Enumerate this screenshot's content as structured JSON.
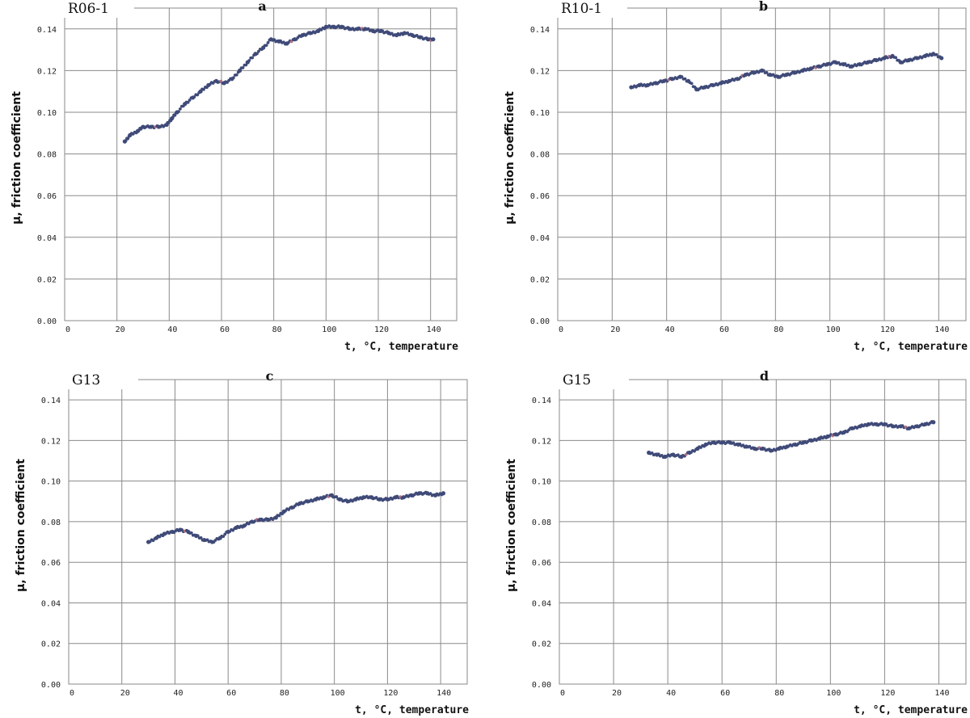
{
  "colors": {
    "points": "#3f4a78",
    "accent": "#b07080",
    "grid": "#8a8a8a"
  },
  "chart_data": [
    {
      "type": "scatter",
      "panel": "a",
      "sample": "R06-1",
      "xlabel": "t, °C, temperature",
      "ylabel": "μ, friction coefficient",
      "xlim": [
        0,
        150
      ],
      "ylim": [
        0,
        0.15
      ],
      "x_ticks": [
        "0",
        "20",
        "40",
        "60",
        "80",
        "100",
        "120",
        "140"
      ],
      "y_ticks": [
        "0.00",
        "0.02",
        "0.04",
        "0.06",
        "0.08",
        "0.10",
        "0.12",
        "0.14"
      ],
      "grid": true,
      "series": [
        {
          "x": [
            23,
            25,
            28,
            30,
            33,
            36,
            39,
            41,
            43,
            46,
            49,
            52,
            55,
            58,
            61,
            64,
            67,
            70,
            73,
            76,
            79,
            82,
            85,
            88,
            91,
            94,
            97,
            100,
            103,
            106,
            109,
            112,
            115,
            118,
            121,
            124,
            127,
            130,
            133,
            136,
            139,
            141
          ],
          "y": [
            0.086,
            0.089,
            0.091,
            0.093,
            0.093,
            0.093,
            0.094,
            0.097,
            0.1,
            0.104,
            0.107,
            0.11,
            0.113,
            0.115,
            0.114,
            0.116,
            0.12,
            0.124,
            0.128,
            0.131,
            0.135,
            0.134,
            0.133,
            0.135,
            0.137,
            0.138,
            0.139,
            0.141,
            0.141,
            0.141,
            0.14,
            0.14,
            0.14,
            0.139,
            0.139,
            0.138,
            0.137,
            0.138,
            0.137,
            0.136,
            0.135,
            0.135
          ]
        }
      ]
    },
    {
      "type": "scatter",
      "panel": "b",
      "sample": "R10-1",
      "xlabel": "t, °C, temperature",
      "ylabel": "μ, friction coefficient",
      "xlim": [
        0,
        150
      ],
      "ylim": [
        0,
        0.15
      ],
      "x_ticks": [
        "0",
        "20",
        "40",
        "60",
        "80",
        "100",
        "120",
        "140"
      ],
      "y_ticks": [
        "0.00",
        "0.02",
        "0.04",
        "0.06",
        "0.08",
        "0.10",
        "0.12",
        "0.14"
      ],
      "grid": true,
      "series": [
        {
          "x": [
            27,
            30,
            33,
            36,
            39,
            42,
            45,
            48,
            51,
            54,
            57,
            60,
            63,
            66,
            69,
            72,
            75,
            78,
            81,
            84,
            87,
            90,
            93,
            96,
            99,
            102,
            105,
            108,
            111,
            114,
            117,
            120,
            123,
            126,
            129,
            132,
            135,
            138,
            141
          ],
          "y": [
            0.112,
            0.113,
            0.113,
            0.114,
            0.115,
            0.116,
            0.117,
            0.115,
            0.111,
            0.112,
            0.113,
            0.114,
            0.115,
            0.116,
            0.118,
            0.119,
            0.12,
            0.118,
            0.117,
            0.118,
            0.119,
            0.12,
            0.121,
            0.122,
            0.123,
            0.124,
            0.123,
            0.122,
            0.123,
            0.124,
            0.125,
            0.126,
            0.127,
            0.124,
            0.125,
            0.126,
            0.127,
            0.128,
            0.126
          ]
        }
      ]
    },
    {
      "type": "scatter",
      "panel": "c",
      "sample": "G13",
      "xlabel": "t, °C, temperature",
      "ylabel": "μ, friction coefficient",
      "xlim": [
        0,
        150
      ],
      "ylim": [
        0,
        0.15
      ],
      "x_ticks": [
        "0",
        "20",
        "40",
        "60",
        "80",
        "100",
        "120",
        "140"
      ],
      "y_ticks": [
        "0.00",
        "0.02",
        "0.04",
        "0.06",
        "0.08",
        "0.10",
        "0.12",
        "0.14"
      ],
      "grid": true,
      "series": [
        {
          "x": [
            30,
            33,
            36,
            39,
            42,
            45,
            48,
            51,
            54,
            57,
            60,
            63,
            66,
            69,
            72,
            75,
            78,
            81,
            84,
            87,
            90,
            93,
            96,
            99,
            102,
            105,
            108,
            111,
            114,
            117,
            120,
            123,
            126,
            129,
            132,
            135,
            138,
            141
          ],
          "y": [
            0.07,
            0.072,
            0.074,
            0.075,
            0.076,
            0.075,
            0.073,
            0.071,
            0.07,
            0.072,
            0.075,
            0.077,
            0.078,
            0.08,
            0.081,
            0.081,
            0.082,
            0.085,
            0.087,
            0.089,
            0.09,
            0.091,
            0.092,
            0.093,
            0.091,
            0.09,
            0.091,
            0.092,
            0.092,
            0.091,
            0.091,
            0.092,
            0.092,
            0.093,
            0.094,
            0.094,
            0.093,
            0.094
          ]
        }
      ]
    },
    {
      "type": "scatter",
      "panel": "d",
      "sample": "G15",
      "xlabel": "t, °C, temperature",
      "ylabel": "μ, friction coefficient",
      "xlim": [
        0,
        150
      ],
      "ylim": [
        0,
        0.15
      ],
      "x_ticks": [
        "0",
        "20",
        "40",
        "60",
        "80",
        "100",
        "120",
        "140"
      ],
      "y_ticks": [
        "0.00",
        "0.02",
        "0.04",
        "0.06",
        "0.08",
        "0.10",
        "0.12",
        "0.14"
      ],
      "grid": true,
      "series": [
        {
          "x": [
            33,
            36,
            39,
            42,
            45,
            48,
            51,
            54,
            57,
            60,
            63,
            66,
            69,
            72,
            75,
            78,
            81,
            84,
            87,
            90,
            93,
            96,
            99,
            102,
            105,
            108,
            111,
            114,
            117,
            120,
            123,
            126,
            129,
            132,
            135,
            138
          ],
          "y": [
            0.114,
            0.113,
            0.112,
            0.113,
            0.112,
            0.114,
            0.116,
            0.118,
            0.119,
            0.119,
            0.119,
            0.118,
            0.117,
            0.116,
            0.116,
            0.115,
            0.116,
            0.117,
            0.118,
            0.119,
            0.12,
            0.121,
            0.122,
            0.123,
            0.124,
            0.126,
            0.127,
            0.128,
            0.128,
            0.128,
            0.127,
            0.127,
            0.126,
            0.127,
            0.128,
            0.129
          ]
        }
      ]
    }
  ]
}
